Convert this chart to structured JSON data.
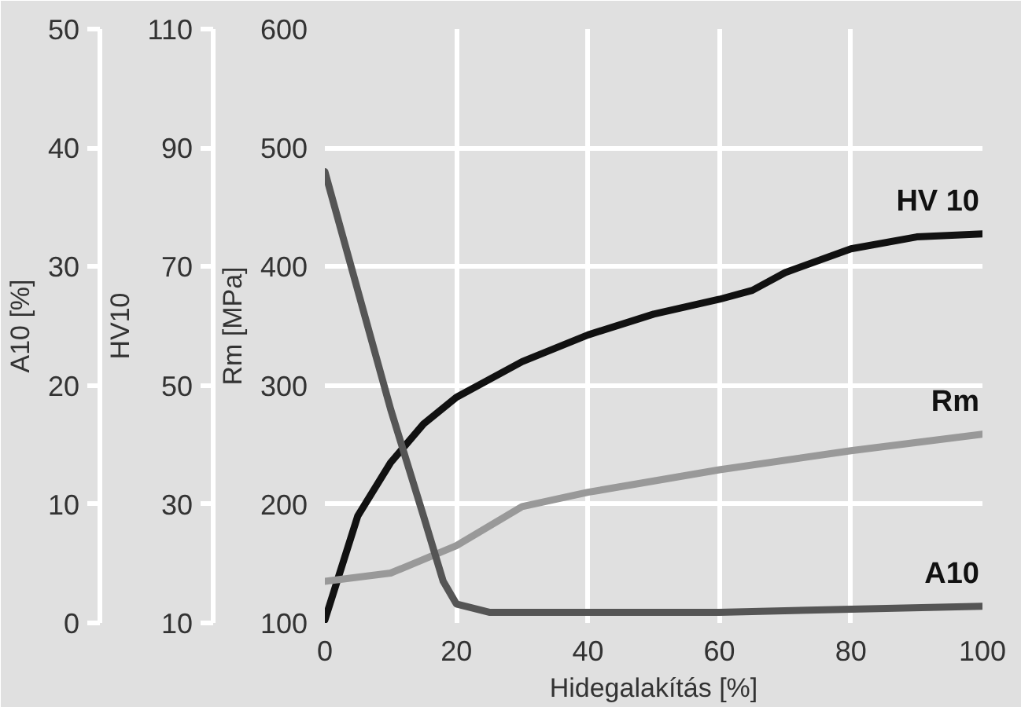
{
  "chart_data": {
    "type": "line",
    "xlabel": "Hidegalakítás [%]",
    "ylabel": "Rm [MPa]",
    "y2label": "HV10",
    "y3label": "A10 [%]",
    "xlim": [
      0,
      100
    ],
    "xticks": [
      0,
      20,
      40,
      60,
      80,
      100
    ],
    "ylim": [
      100,
      600
    ],
    "yticks": [
      100,
      200,
      300,
      400,
      500,
      600
    ],
    "y2lim": [
      10,
      110
    ],
    "y2ticks": [
      10,
      30,
      50,
      70,
      90,
      110
    ],
    "y3lim": [
      0,
      50
    ],
    "y3ticks": [
      0,
      10,
      20,
      30,
      40,
      50
    ],
    "grid": true,
    "marker": "none",
    "line_style": "solid",
    "series": [
      {
        "name": "HV 10",
        "color": "#111111",
        "axis": "y2",
        "x": [
          0,
          5,
          10,
          15,
          20,
          30,
          40,
          50,
          60,
          65,
          70,
          80,
          90,
          100
        ],
        "values": [
          10.5,
          28,
          37,
          43.5,
          48,
          54,
          58.5,
          62,
          64.5,
          66,
          69,
          73,
          75,
          75.5
        ]
      },
      {
        "name": "Rm",
        "color": "#999999",
        "axis": "y",
        "x": [
          0,
          10,
          20,
          30,
          40,
          60,
          80,
          100
        ],
        "values": [
          135,
          142,
          165,
          198,
          210,
          229,
          245,
          259
        ]
      },
      {
        "name": "A10",
        "color": "#555555",
        "axis": "y3",
        "x": [
          0,
          5,
          10,
          15,
          18,
          20,
          25,
          60,
          100
        ],
        "values": [
          38,
          28,
          18,
          9,
          3.5,
          1.6,
          0.9,
          0.9,
          1.4
        ]
      }
    ]
  }
}
